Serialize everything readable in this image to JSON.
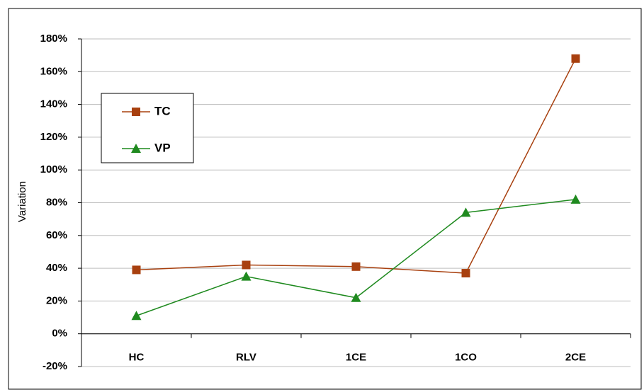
{
  "chart_data": {
    "type": "line",
    "y_label": "Variation",
    "categories": [
      "HC",
      "RLV",
      "1CE",
      "1CO",
      "2CE"
    ],
    "series": [
      {
        "name": "TC",
        "color": "#a8400f",
        "marker": "square",
        "values": [
          39,
          42,
          41,
          37,
          168
        ]
      },
      {
        "name": "VP",
        "color": "#1f8a1f",
        "marker": "triangle",
        "values": [
          11,
          35,
          22,
          74,
          82
        ]
      }
    ],
    "ylim": [
      -20,
      180
    ],
    "yticks": [
      {
        "value": -20,
        "label": "-20%"
      },
      {
        "value": 0,
        "label": "0%"
      },
      {
        "value": 20,
        "label": "20%"
      },
      {
        "value": 40,
        "label": "40%"
      },
      {
        "value": 60,
        "label": "60%"
      },
      {
        "value": 80,
        "label": "80%"
      },
      {
        "value": 100,
        "label": "100%"
      },
      {
        "value": 120,
        "label": "120%"
      },
      {
        "value": 140,
        "label": "140%"
      },
      {
        "value": 160,
        "label": "160%"
      },
      {
        "value": 180,
        "label": "180%"
      }
    ],
    "grid": true
  }
}
